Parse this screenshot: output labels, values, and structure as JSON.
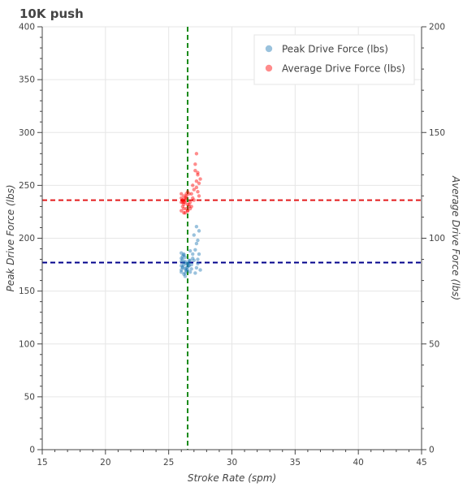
{
  "chart_data": {
    "type": "scatter",
    "title": "10K push",
    "xlabel": "Stroke Rate (spm)",
    "ylabel": "Peak Drive Force (lbs)",
    "y2label": "Average Drive Force (lbs)",
    "xlim": [
      15,
      45
    ],
    "ylim": [
      0,
      400
    ],
    "y2lim": [
      0,
      200
    ],
    "x_ticks": [
      15,
      20,
      25,
      30,
      35,
      40,
      45
    ],
    "y_ticks": [
      0,
      50,
      100,
      150,
      200,
      250,
      300,
      350,
      400
    ],
    "y2_ticks": [
      0,
      50,
      100,
      150,
      200
    ],
    "grid": true,
    "legend_position": "top-right",
    "reference_lines": {
      "stroke_rate_vline": 26.5,
      "peak_force_hline": 177,
      "average_force_hline_on_left_axis": 236
    },
    "series": [
      {
        "name": "Peak Drive Force (lbs)",
        "axis": "left",
        "color": "#1f77b4",
        "points": [
          [
            26.0,
            168
          ],
          [
            26.1,
            172
          ],
          [
            26.2,
            175
          ],
          [
            26.3,
            178
          ],
          [
            26.0,
            181
          ],
          [
            26.4,
            170
          ],
          [
            26.5,
            176
          ],
          [
            26.1,
            183
          ],
          [
            26.2,
            166
          ],
          [
            26.3,
            171
          ],
          [
            26.6,
            174
          ],
          [
            26.7,
            179
          ],
          [
            26.0,
            186
          ],
          [
            26.4,
            169
          ],
          [
            26.5,
            173
          ],
          [
            26.6,
            177
          ],
          [
            26.1,
            180
          ],
          [
            26.2,
            184
          ],
          [
            26.3,
            167
          ],
          [
            26.4,
            172
          ],
          [
            26.8,
            175
          ],
          [
            26.0,
            178
          ],
          [
            26.9,
            181
          ],
          [
            26.5,
            170
          ],
          [
            26.6,
            174
          ],
          [
            26.2,
            177
          ],
          [
            26.3,
            182
          ],
          [
            26.7,
            168
          ],
          [
            26.1,
            173
          ],
          [
            26.4,
            176
          ],
          [
            27.0,
            179
          ],
          [
            26.2,
            185
          ],
          [
            26.8,
            171
          ],
          [
            26.5,
            176
          ],
          [
            26.0,
            170
          ],
          [
            26.6,
            179
          ],
          [
            27.2,
            172
          ],
          [
            27.3,
            180
          ],
          [
            27.4,
            185
          ],
          [
            27.1,
            189
          ],
          [
            27.2,
            195
          ],
          [
            27.3,
            198
          ],
          [
            27.0,
            203
          ],
          [
            27.4,
            207
          ],
          [
            27.2,
            211
          ],
          [
            26.9,
            185
          ],
          [
            27.1,
            167
          ],
          [
            27.5,
            170
          ],
          [
            26.3,
            164
          ],
          [
            26.7,
            188
          ],
          [
            27.3,
            176
          ],
          [
            26.0,
            174
          ]
        ]
      },
      {
        "name": "Average Drive Force (lbs)",
        "axis": "right",
        "color": "#ff0000",
        "points": [
          [
            26.0,
            113
          ],
          [
            26.1,
            115
          ],
          [
            26.2,
            117
          ],
          [
            26.3,
            119
          ],
          [
            26.0,
            121
          ],
          [
            26.4,
            114
          ],
          [
            26.5,
            116
          ],
          [
            26.1,
            118
          ],
          [
            26.2,
            120
          ],
          [
            26.3,
            112
          ],
          [
            26.6,
            115
          ],
          [
            26.7,
            117
          ],
          [
            26.0,
            119
          ],
          [
            26.4,
            121
          ],
          [
            26.5,
            113
          ],
          [
            26.6,
            116
          ],
          [
            26.1,
            118
          ],
          [
            26.2,
            114
          ],
          [
            26.3,
            117
          ],
          [
            26.4,
            120
          ],
          [
            26.8,
            115
          ],
          [
            26.0,
            117
          ],
          [
            26.9,
            119
          ],
          [
            26.5,
            113
          ],
          [
            26.6,
            121
          ],
          [
            26.2,
            116
          ],
          [
            26.3,
            118
          ],
          [
            26.7,
            114
          ],
          [
            26.1,
            117
          ],
          [
            26.4,
            119
          ],
          [
            26.5,
            122
          ],
          [
            26.2,
            112
          ],
          [
            27.0,
            123
          ],
          [
            27.2,
            127
          ],
          [
            27.3,
            130
          ],
          [
            27.1,
            132
          ],
          [
            27.4,
            126
          ],
          [
            27.2,
            124
          ],
          [
            27.3,
            122
          ],
          [
            27.5,
            128
          ],
          [
            27.1,
            135
          ],
          [
            27.2,
            140
          ],
          [
            26.9,
            125
          ],
          [
            27.3,
            131
          ],
          [
            27.4,
            120
          ],
          [
            26.8,
            121
          ],
          [
            27.0,
            118
          ]
        ]
      }
    ]
  }
}
